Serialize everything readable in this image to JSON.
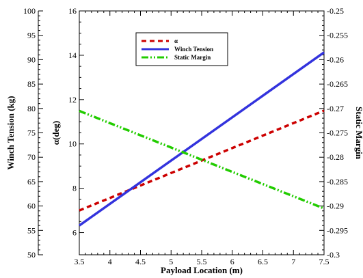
{
  "chart_data": {
    "type": "line",
    "xlabel": "Payload Location (m)",
    "ylabel_left_outer": "Winch Tension (kg)",
    "ylabel_left_inner": "α(deg)",
    "ylabel_right": "Static Margin",
    "xlim": [
      3.5,
      7.5
    ],
    "x_ticks": [
      "3.5",
      "4",
      "4.5",
      "5",
      "5.5",
      "6",
      "6.5",
      "7",
      "7.5"
    ],
    "axes": {
      "tension": {
        "lim": [
          50,
          100
        ],
        "ticks": [
          "50",
          "55",
          "60",
          "65",
          "70",
          "75",
          "80",
          "85",
          "90",
          "95",
          "100"
        ]
      },
      "alpha": {
        "lim": [
          5,
          16
        ],
        "ticks": [
          "6",
          "8",
          "10",
          "12",
          "14",
          "16"
        ]
      },
      "margin": {
        "lim": [
          -0.3,
          -0.25
        ],
        "ticks": [
          "-0.3",
          "-0.295",
          "-0.29",
          "-0.285",
          "-0.28",
          "-0.275",
          "-0.27",
          "-0.265",
          "-0.26",
          "-0.255",
          "-0.25"
        ]
      }
    },
    "grid": false,
    "legend_position": "top-center",
    "series": [
      {
        "name": "α",
        "axis": "alpha",
        "color": "#cc0000",
        "dash": "dashed",
        "x": [
          3.5,
          7.5
        ],
        "y": [
          7.0,
          11.5
        ]
      },
      {
        "name": "Winch Tension",
        "axis": "tension",
        "color": "#3333dd",
        "dash": "solid",
        "x": [
          3.5,
          7.5
        ],
        "y": [
          56.0,
          91.5
        ]
      },
      {
        "name": "Static Margin",
        "axis": "margin",
        "color": "#22cc00",
        "dash": "dashdotdot",
        "x": [
          3.5,
          7.5
        ],
        "y": [
          -0.2705,
          -0.2905
        ]
      }
    ]
  }
}
